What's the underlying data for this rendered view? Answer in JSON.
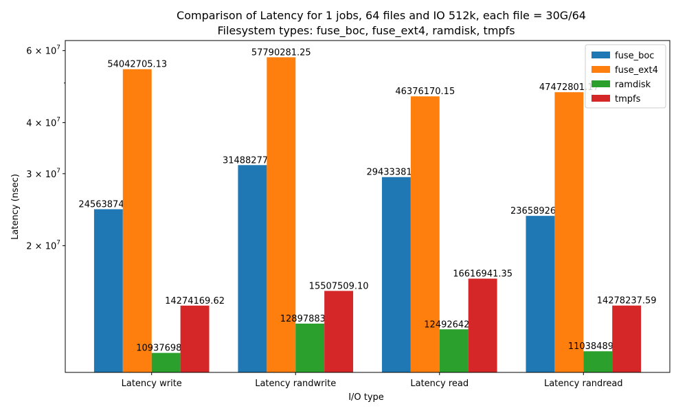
{
  "chart_data": {
    "type": "bar",
    "title": "Comparison of Latency for 1 jobs, 64 files and  IO 512k, each file = 30G/64",
    "subtitle": "Filesystem types: fuse_boc, fuse_ext4, ramdisk, tmpfs",
    "xlabel": "I/O type",
    "ylabel": "Latency (nsec)",
    "yscale": "log",
    "ylim": [
      9800000,
      63500000
    ],
    "yticks": [
      {
        "value": 20000000,
        "mantissa": "2",
        "base": "10",
        "exp": "7"
      },
      {
        "value": 30000000,
        "mantissa": "3",
        "base": "10",
        "exp": "7"
      },
      {
        "value": 40000000,
        "mantissa": "4",
        "base": "10",
        "exp": "7"
      },
      {
        "value": 60000000,
        "mantissa": "6",
        "base": "10",
        "exp": "7"
      }
    ],
    "yminor_ticks": [
      50000000
    ],
    "categories": [
      "Latency write",
      "Latency randwrite",
      "Latency read",
      "Latency randread"
    ],
    "series": [
      {
        "name": "fuse_boc",
        "color": "#1f77b4",
        "values": [
          24563874.21,
          31488277.49,
          29433381.71,
          23658926.56
        ],
        "labels": [
          "24563874.21",
          "31488277.49",
          "29433381.71",
          "23658926.56"
        ]
      },
      {
        "name": "fuse_ext4",
        "color": "#ff7f0e",
        "values": [
          54042705.13,
          57790281.25,
          46376170.15,
          47472801.17
        ],
        "labels": [
          "54042705.13",
          "57790281.25",
          "46376170.15",
          "47472801.17"
        ]
      },
      {
        "name": "ramdisk",
        "color": "#2ca02c",
        "values": [
          10937698.13,
          12897883.3,
          12492642.61,
          11038489.82
        ],
        "labels": [
          "10937698.13",
          "12897883.30",
          "12492642.61",
          "11038489.82"
        ]
      },
      {
        "name": "tmpfs",
        "color": "#d62728",
        "values": [
          14274169.62,
          15507509.1,
          16616941.35,
          14278237.59
        ],
        "labels": [
          "14274169.62",
          "15507509.10",
          "16616941.35",
          "14278237.59"
        ]
      }
    ],
    "legend_position": "top-right",
    "grid": false
  }
}
